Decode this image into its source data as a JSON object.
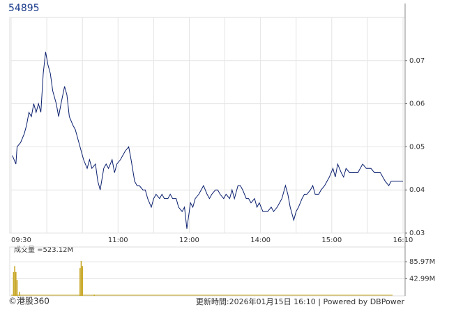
{
  "chart_data": [
    {
      "type": "line",
      "title": "54895",
      "color": "#0a1f6e",
      "x": [
        1,
        4,
        5,
        8,
        11,
        13,
        15,
        17,
        19,
        21,
        23,
        25,
        27,
        29,
        31,
        33,
        35,
        38,
        40,
        42,
        45,
        47,
        49,
        52,
        54,
        56,
        59,
        61,
        64,
        66,
        68,
        71,
        73,
        75,
        78,
        80,
        82,
        85,
        87,
        89,
        92,
        94,
        96,
        99,
        101,
        104,
        106,
        108,
        111,
        113,
        115,
        118,
        120,
        122,
        125,
        127,
        129,
        132,
        134,
        136,
        139,
        141,
        144,
        146,
        148,
        151,
        153,
        155,
        158,
        160,
        162,
        165,
        167,
        169,
        172,
        174,
        176,
        179,
        181,
        184,
        186,
        188,
        191,
        193,
        195,
        198,
        200,
        202,
        205,
        207,
        209,
        212,
        214,
        216,
        219,
        221,
        224,
        226,
        228,
        231,
        233,
        235,
        238,
        240,
        242,
        245,
        247,
        249,
        252,
        254,
        256,
        259,
        261,
        264,
        266,
        268,
        271,
        273,
        275,
        278,
        280,
        282,
        285,
        287,
        289,
        292,
        294,
        296,
        299,
        301,
        303,
        306,
        308,
        311,
        313,
        315,
        318,
        320,
        322,
        325,
        327,
        330
      ],
      "values": [
        0.048,
        0.046,
        0.05,
        0.051,
        0.053,
        0.055,
        0.058,
        0.057,
        0.06,
        0.058,
        0.06,
        0.058,
        0.067,
        0.072,
        0.069,
        0.067,
        0.063,
        0.06,
        0.057,
        0.06,
        0.064,
        0.062,
        0.057,
        0.055,
        0.054,
        0.052,
        0.049,
        0.047,
        0.045,
        0.047,
        0.045,
        0.046,
        0.042,
        0.04,
        0.045,
        0.046,
        0.045,
        0.047,
        0.044,
        0.046,
        0.047,
        0.048,
        0.049,
        0.05,
        0.047,
        0.042,
        0.041,
        0.041,
        0.04,
        0.04,
        0.038,
        0.036,
        0.038,
        0.039,
        0.038,
        0.039,
        0.038,
        0.038,
        0.039,
        0.038,
        0.038,
        0.036,
        0.035,
        0.036,
        0.031,
        0.037,
        0.036,
        0.038,
        0.039,
        0.04,
        0.041,
        0.039,
        0.038,
        0.039,
        0.04,
        0.04,
        0.039,
        0.038,
        0.039,
        0.038,
        0.04,
        0.038,
        0.041,
        0.041,
        0.04,
        0.038,
        0.038,
        0.037,
        0.038,
        0.036,
        0.037,
        0.035,
        0.035,
        0.035,
        0.036,
        0.035,
        0.036,
        0.037,
        0.038,
        0.041,
        0.039,
        0.036,
        0.033,
        0.035,
        0.036,
        0.038,
        0.039,
        0.039,
        0.04,
        0.041,
        0.039,
        0.039,
        0.04,
        0.041,
        0.042,
        0.043,
        0.045,
        0.043,
        0.046,
        0.044,
        0.043,
        0.045,
        0.044,
        0.044,
        0.044,
        0.044,
        0.045,
        0.046,
        0.045,
        0.045,
        0.045,
        0.044,
        0.044,
        0.044,
        0.043,
        0.042,
        0.041,
        0.042,
        0.042,
        0.042,
        0.042,
        0.042
      ],
      "xlim": [
        0,
        330
      ],
      "xticks": [
        {
          "value": 0,
          "label": "09:30"
        },
        {
          "value": 30,
          "label": null
        },
        {
          "value": 60,
          "label": null
        },
        {
          "value": 90,
          "label": "11:00"
        },
        {
          "value": 120,
          "label": null
        },
        {
          "value": 150,
          "label": "12:00"
        },
        {
          "value": 180,
          "label": null
        },
        {
          "value": 210,
          "label": "14:00"
        },
        {
          "value": 240,
          "label": null
        },
        {
          "value": 270,
          "label": "15:00"
        },
        {
          "value": 300,
          "label": null
        },
        {
          "value": 330,
          "label": "16:10"
        }
      ],
      "ylim": [
        0.03,
        0.08
      ],
      "yticks": [
        0.03,
        0.04,
        0.05,
        0.06,
        0.07
      ],
      "grid": true
    },
    {
      "type": "bar",
      "title": "成交量 =523.12M",
      "color": "#c8a828",
      "x": [
        2,
        3,
        4,
        5,
        7,
        58,
        59,
        60,
        70
      ],
      "values": [
        60,
        75,
        60,
        40,
        10,
        70,
        88,
        75,
        3
      ],
      "xlim": [
        0,
        330
      ],
      "ylim": [
        0,
        123
      ],
      "yticks": [
        {
          "value": 42.99,
          "label": "42.99M"
        },
        {
          "value": 85.97,
          "label": "85.97M"
        }
      ],
      "grid": true
    }
  ],
  "footer": {
    "copyright": "©港股360",
    "updated": "更新時間:2026年01月15日 16:10  |  Powered by DBPower"
  }
}
